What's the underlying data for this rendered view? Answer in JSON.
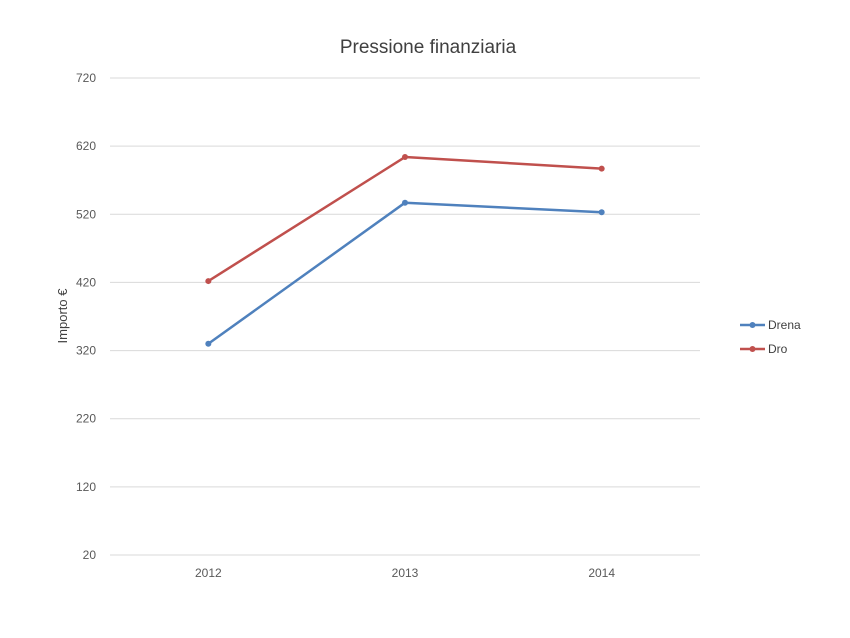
{
  "chart_data": {
    "type": "line",
    "title": "Pressione finanziaria",
    "xlabel": "",
    "ylabel": "Importo €",
    "categories": [
      "2012",
      "2013",
      "2014"
    ],
    "yticks": [
      "20",
      "120",
      "220",
      "320",
      "420",
      "520",
      "620",
      "720"
    ],
    "ylim": [
      20,
      720
    ],
    "grid": true,
    "legend_position": "right",
    "series": [
      {
        "name": "Drena",
        "color": "#4f81bd",
        "values": [
          330,
          537,
          523
        ]
      },
      {
        "name": "Dro",
        "color": "#c0504d",
        "values": [
          422,
          604,
          587
        ]
      }
    ]
  }
}
